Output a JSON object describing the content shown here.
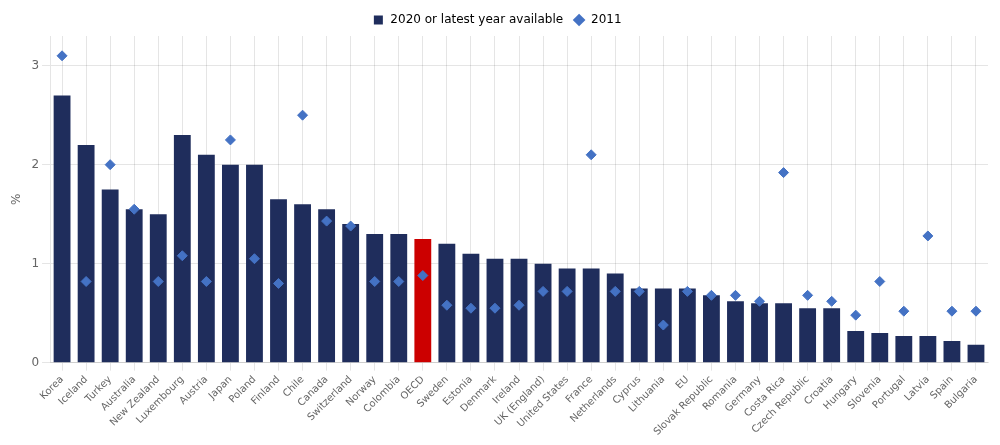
{
  "chart_data": {
    "type": "bar",
    "categories": [
      "Korea",
      "Iceland",
      "Turkey",
      "Australia",
      "New Zealand",
      "Luxembourg",
      "Austria",
      "Japan",
      "Poland",
      "Finland",
      "Chile",
      "Canada",
      "Switzerland",
      "Norway",
      "Colombia",
      "OECD",
      "Sweden",
      "Estonia",
      "Denmark",
      "Ireland",
      "UK (England)",
      "United States",
      "France",
      "Netherlands",
      "Cyprus",
      "Lithuania",
      "EU",
      "Slovak Republic",
      "Romania",
      "Germany",
      "Costa Rica",
      "Czech Republic",
      "Croatia",
      "Hungary",
      "Slovenia",
      "Portugal",
      "Latvia",
      "Spain",
      "Bulgaria"
    ],
    "series": [
      {
        "name": "2020 or latest year available",
        "type": "bar",
        "color": "#1f2d5c",
        "colors": [
          "#1f2d5c",
          "#1f2d5c",
          "#1f2d5c",
          "#1f2d5c",
          "#1f2d5c",
          "#1f2d5c",
          "#1f2d5c",
          "#1f2d5c",
          "#1f2d5c",
          "#1f2d5c",
          "#1f2d5c",
          "#1f2d5c",
          "#1f2d5c",
          "#1f2d5c",
          "#1f2d5c",
          "#cc0000",
          "#1f2d5c",
          "#1f2d5c",
          "#1f2d5c",
          "#1f2d5c",
          "#1f2d5c",
          "#1f2d5c",
          "#1f2d5c",
          "#1f2d5c",
          "#1f2d5c",
          "#1f2d5c",
          "#1f2d5c",
          "#1f2d5c",
          "#1f2d5c",
          "#1f2d5c",
          "#1f2d5c",
          "#1f2d5c",
          "#1f2d5c",
          "#1f2d5c",
          "#1f2d5c",
          "#1f2d5c",
          "#1f2d5c",
          "#1f2d5c",
          "#1f2d5c"
        ],
        "values": [
          2.7,
          2.2,
          1.75,
          1.55,
          1.5,
          2.3,
          2.1,
          2.0,
          2.0,
          1.65,
          1.6,
          1.55,
          1.4,
          1.3,
          1.3,
          1.25,
          1.2,
          1.1,
          1.05,
          1.05,
          1.0,
          0.95,
          0.95,
          0.9,
          0.75,
          0.75,
          0.75,
          0.68,
          0.62,
          0.6,
          0.6,
          0.55,
          0.55,
          0.32,
          0.3,
          0.27,
          0.27,
          0.22,
          0.18
        ]
      },
      {
        "name": "2011",
        "type": "scatter",
        "marker": "diamond",
        "color": "#4472c4",
        "values": [
          3.1,
          0.82,
          2.0,
          1.55,
          0.82,
          1.08,
          0.82,
          2.25,
          1.05,
          0.8,
          2.5,
          1.43,
          1.38,
          0.82,
          0.82,
          0.88,
          0.58,
          0.55,
          0.55,
          0.58,
          0.72,
          0.72,
          2.1,
          0.72,
          0.72,
          0.38,
          0.72,
          0.68,
          0.68,
          0.62,
          1.92,
          0.68,
          0.62,
          0.48,
          0.82,
          0.52,
          1.28,
          0.52,
          0.52
        ]
      }
    ],
    "ylabel": "%",
    "ylim": [
      0,
      3.3
    ],
    "yticks": [
      0,
      1,
      2,
      3
    ],
    "grid": true,
    "legend": "top"
  }
}
